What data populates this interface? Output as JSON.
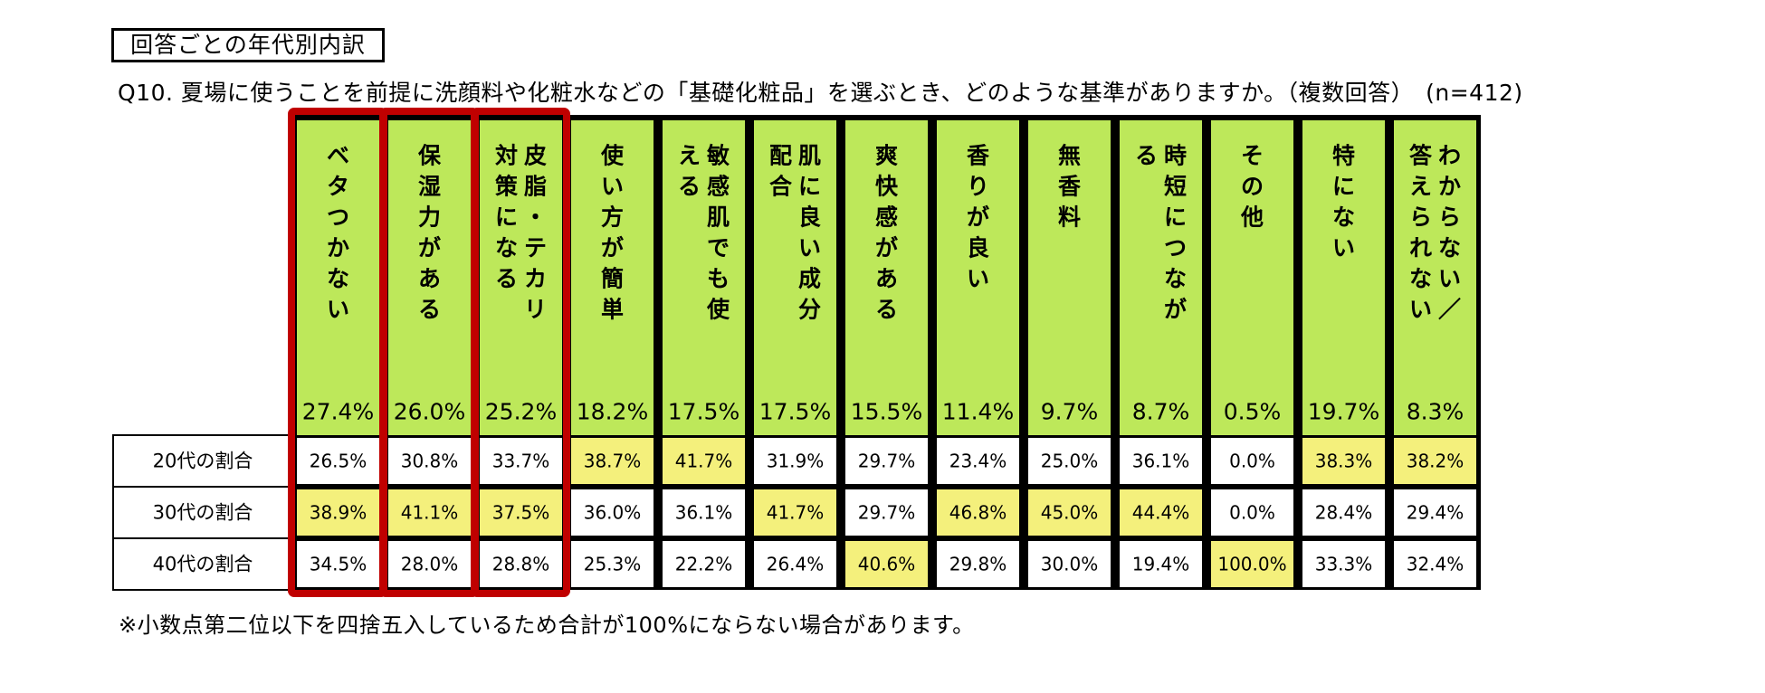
{
  "section_label": "回答ごとの年代別内訳",
  "question": "Q10. 夏場に使うことを前提に洗顔料や化粧水などの「基礎化粧品」を選ぶとき、どのような基準がありますか。（複数回答）　(n=412)",
  "footnote": "※小数点第二位以下を四捨五入しているため合計が100%にならない場合があります。",
  "colors": {
    "header_fill": "#bde85a",
    "highlight_fill": "#f4f07c",
    "frame": "#000000",
    "emphasis_border": "#c00000",
    "cell_fill": "#ffffff"
  },
  "chart_data": {
    "type": "table",
    "categories": [
      {
        "label": "ベタつかない",
        "total": "27.4%"
      },
      {
        "label": "保湿力がある",
        "total": "26.0%"
      },
      {
        "label": "皮脂・テカリ対策になる",
        "total": "25.2%"
      },
      {
        "label": "使い方が簡単",
        "total": "18.2%"
      },
      {
        "label": "敏感肌でも使える",
        "total": "17.5%"
      },
      {
        "label": "肌に良い成分配合",
        "total": "17.5%"
      },
      {
        "label": "爽快感がある",
        "total": "15.5%"
      },
      {
        "label": "香りが良い",
        "total": "11.4%"
      },
      {
        "label": "無香料",
        "total": "9.7%"
      },
      {
        "label": "時短につながる",
        "total": "8.7%"
      },
      {
        "label": "その他",
        "total": "0.5%"
      },
      {
        "label": "特にない",
        "total": "19.7%"
      },
      {
        "label": "わからない／答えられない",
        "total": "8.3%"
      }
    ],
    "rows": [
      {
        "label": "20代の割合",
        "values": [
          "26.5%",
          "30.8%",
          "33.7%",
          "38.7%",
          "41.7%",
          "31.9%",
          "29.7%",
          "23.4%",
          "25.0%",
          "36.1%",
          "0.0%",
          "38.3%",
          "38.2%"
        ],
        "highlighted": [
          false,
          false,
          false,
          true,
          true,
          false,
          false,
          false,
          false,
          false,
          false,
          true,
          true
        ]
      },
      {
        "label": "30代の割合",
        "values": [
          "38.9%",
          "41.1%",
          "37.5%",
          "36.0%",
          "36.1%",
          "41.7%",
          "29.7%",
          "46.8%",
          "45.0%",
          "44.4%",
          "0.0%",
          "28.4%",
          "29.4%"
        ],
        "highlighted": [
          true,
          true,
          true,
          false,
          false,
          true,
          false,
          true,
          true,
          true,
          false,
          false,
          false
        ]
      },
      {
        "label": "40代の割合",
        "values": [
          "34.5%",
          "28.0%",
          "28.8%",
          "25.3%",
          "22.2%",
          "26.4%",
          "40.6%",
          "29.8%",
          "30.0%",
          "19.4%",
          "100.0%",
          "33.3%",
          "32.4%"
        ],
        "highlighted": [
          false,
          false,
          false,
          false,
          false,
          false,
          true,
          false,
          false,
          false,
          true,
          false,
          false
        ]
      }
    ],
    "emphasized_columns": [
      0,
      1,
      2
    ]
  }
}
